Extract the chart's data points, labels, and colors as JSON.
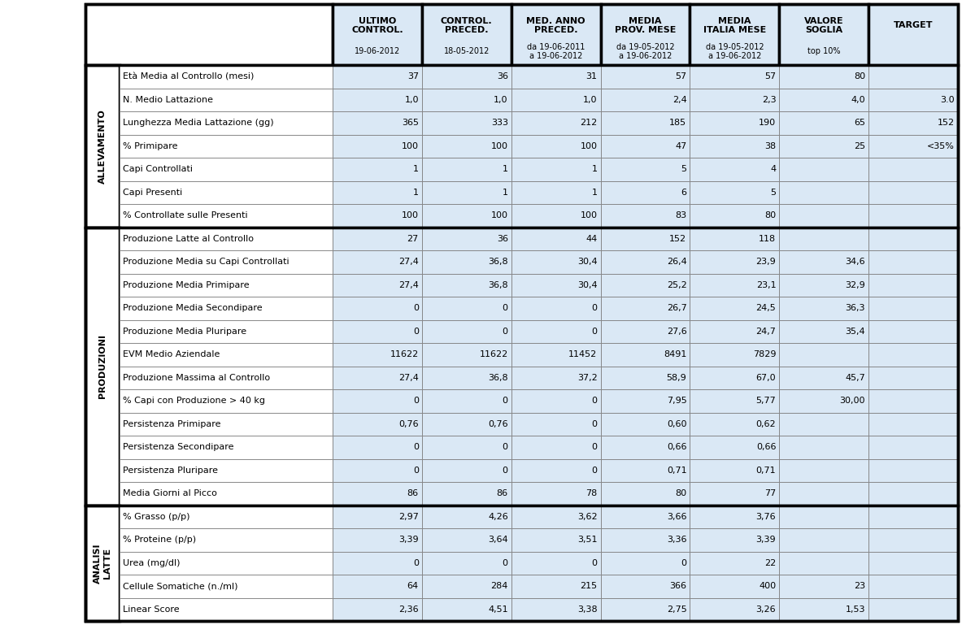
{
  "col_headers_bold": [
    "ULTIMO\nCONTROL.",
    "CONTROL.\nPRECED.",
    "MED. ANNO\nPRECED.",
    "MEDIA\nPROV. MESE",
    "MEDIA\nITALIA MESE",
    "VALORE\nSOGLIA",
    "TARGET"
  ],
  "col_headers_sub": [
    "19-06-2012",
    "18-05-2012",
    "da 19-06-2011\na 19-06-2012",
    "da 19-05-2012\na 19-06-2012",
    "da 19-05-2012\na 19-06-2012",
    "top 10%",
    ""
  ],
  "sections": [
    {
      "label": "ALLEVAMENTO",
      "rows": [
        {
          "name": "Età Media al Controllo (mesi)",
          "vals": [
            "37",
            "36",
            "31",
            "57",
            "57",
            "80",
            ""
          ]
        },
        {
          "name": "N. Medio Lattazione",
          "vals": [
            "1,0",
            "1,0",
            "1,0",
            "2,4",
            "2,3",
            "4,0",
            "3.0"
          ]
        },
        {
          "name": "Lunghezza Media Lattazione (gg)",
          "vals": [
            "365",
            "333",
            "212",
            "185",
            "190",
            "65",
            "152"
          ]
        },
        {
          "name": "% Primipare",
          "vals": [
            "100",
            "100",
            "100",
            "47",
            "38",
            "25",
            "<35%"
          ]
        },
        {
          "name": "Capi Controllati",
          "vals": [
            "1",
            "1",
            "1",
            "5",
            "4",
            "",
            ""
          ]
        },
        {
          "name": "Capi Presenti",
          "vals": [
            "1",
            "1",
            "1",
            "6",
            "5",
            "",
            ""
          ]
        },
        {
          "name": "% Controllate sulle Presenti",
          "vals": [
            "100",
            "100",
            "100",
            "83",
            "80",
            "",
            ""
          ]
        }
      ]
    },
    {
      "label": "PRODUZIONI",
      "rows": [
        {
          "name": "Produzione Latte al Controllo",
          "vals": [
            "27",
            "36",
            "44",
            "152",
            "118",
            "",
            ""
          ]
        },
        {
          "name": "Produzione Media su Capi Controllati",
          "vals": [
            "27,4",
            "36,8",
            "30,4",
            "26,4",
            "23,9",
            "34,6",
            ""
          ]
        },
        {
          "name": "Produzione Media Primipare",
          "vals": [
            "27,4",
            "36,8",
            "30,4",
            "25,2",
            "23,1",
            "32,9",
            ""
          ]
        },
        {
          "name": "Produzione Media Secondipare",
          "vals": [
            "0",
            "0",
            "0",
            "26,7",
            "24,5",
            "36,3",
            ""
          ]
        },
        {
          "name": "Produzione Media Pluripare",
          "vals": [
            "0",
            "0",
            "0",
            "27,6",
            "24,7",
            "35,4",
            ""
          ]
        },
        {
          "name": "EVM Medio Aziendale",
          "vals": [
            "11622",
            "11622",
            "11452",
            "8491",
            "7829",
            "",
            ""
          ]
        },
        {
          "name": "Produzione Massima al Controllo",
          "vals": [
            "27,4",
            "36,8",
            "37,2",
            "58,9",
            "67,0",
            "45,7",
            ""
          ]
        },
        {
          "name": "% Capi con Produzione > 40 kg",
          "vals": [
            "0",
            "0",
            "0",
            "7,95",
            "5,77",
            "30,00",
            ""
          ]
        },
        {
          "name": "Persistenza Primipare",
          "vals": [
            "0,76",
            "0,76",
            "0",
            "0,60",
            "0,62",
            "",
            ""
          ]
        },
        {
          "name": "Persistenza Secondipare",
          "vals": [
            "0",
            "0",
            "0",
            "0,66",
            "0,66",
            "",
            ""
          ]
        },
        {
          "name": "Persistenza Pluripare",
          "vals": [
            "0",
            "0",
            "0",
            "0,71",
            "0,71",
            "",
            ""
          ]
        },
        {
          "name": "Media Giorni al Picco",
          "vals": [
            "86",
            "86",
            "78",
            "80",
            "77",
            "",
            ""
          ]
        }
      ]
    },
    {
      "label": "ANALISI\nLATTE",
      "rows": [
        {
          "name": "% Grasso (p/p)",
          "vals": [
            "2,97",
            "4,26",
            "3,62",
            "3,66",
            "3,76",
            "",
            ""
          ]
        },
        {
          "name": "% Proteine (p/p)",
          "vals": [
            "3,39",
            "3,64",
            "3,51",
            "3,36",
            "3,39",
            "",
            ""
          ]
        },
        {
          "name": "Urea (mg/dl)",
          "vals": [
            "0",
            "0",
            "0",
            "0",
            "22",
            "",
            ""
          ]
        },
        {
          "name": "Cellule Somatiche (n./ml)",
          "vals": [
            "64",
            "284",
            "215",
            "366",
            "400",
            "23",
            ""
          ]
        },
        {
          "name": "Linear Score",
          "vals": [
            "2,36",
            "4,51",
            "3,38",
            "2,75",
            "3,26",
            "1,53",
            ""
          ]
        }
      ]
    }
  ],
  "bg_header": "#DAE8F5",
  "bg_data": "#DAE8F5",
  "bg_white": "#FFFFFF",
  "thick_lw": 2.5,
  "thin_lw": 0.6,
  "section_label_fontsize": 8.0,
  "header_bold_fontsize": 8.0,
  "header_sub_fontsize": 7.0,
  "data_fontsize": 8.0,
  "row_label_fontsize": 8.0
}
